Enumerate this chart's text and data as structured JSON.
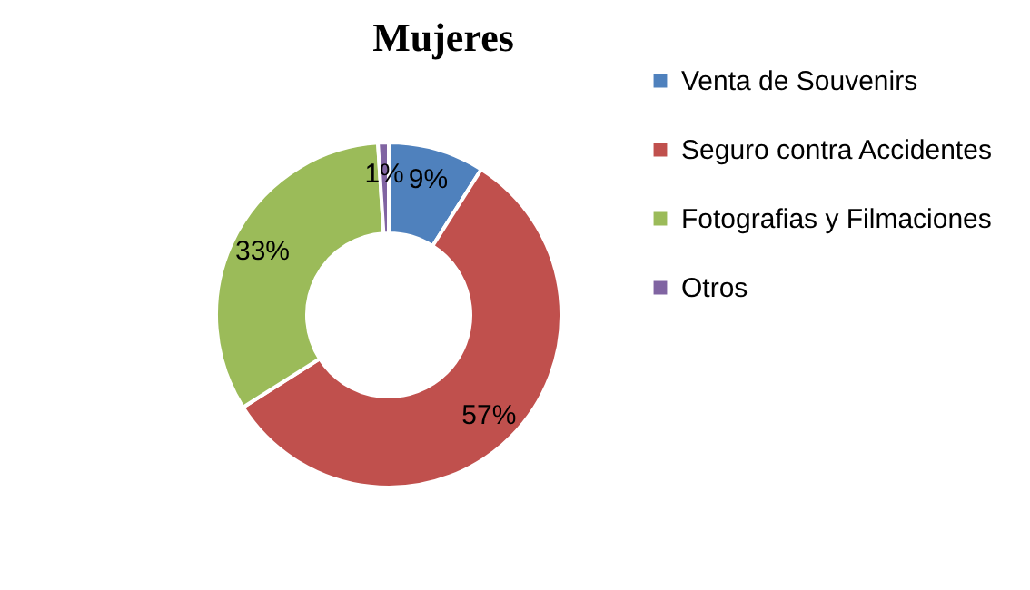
{
  "chart_data": {
    "type": "donut",
    "title": "Mujeres",
    "categories": [
      "Venta de Souvenirs",
      "Seguro contra Accidentes",
      "Fotografias y Filmaciones",
      "Otros"
    ],
    "values": [
      9,
      57,
      33,
      1
    ],
    "colors": [
      "#4f81bd",
      "#c0504d",
      "#9bbb59",
      "#8064a2"
    ],
    "value_labels": [
      "9%",
      "57%",
      "33%",
      "1%"
    ],
    "legend": "right"
  }
}
